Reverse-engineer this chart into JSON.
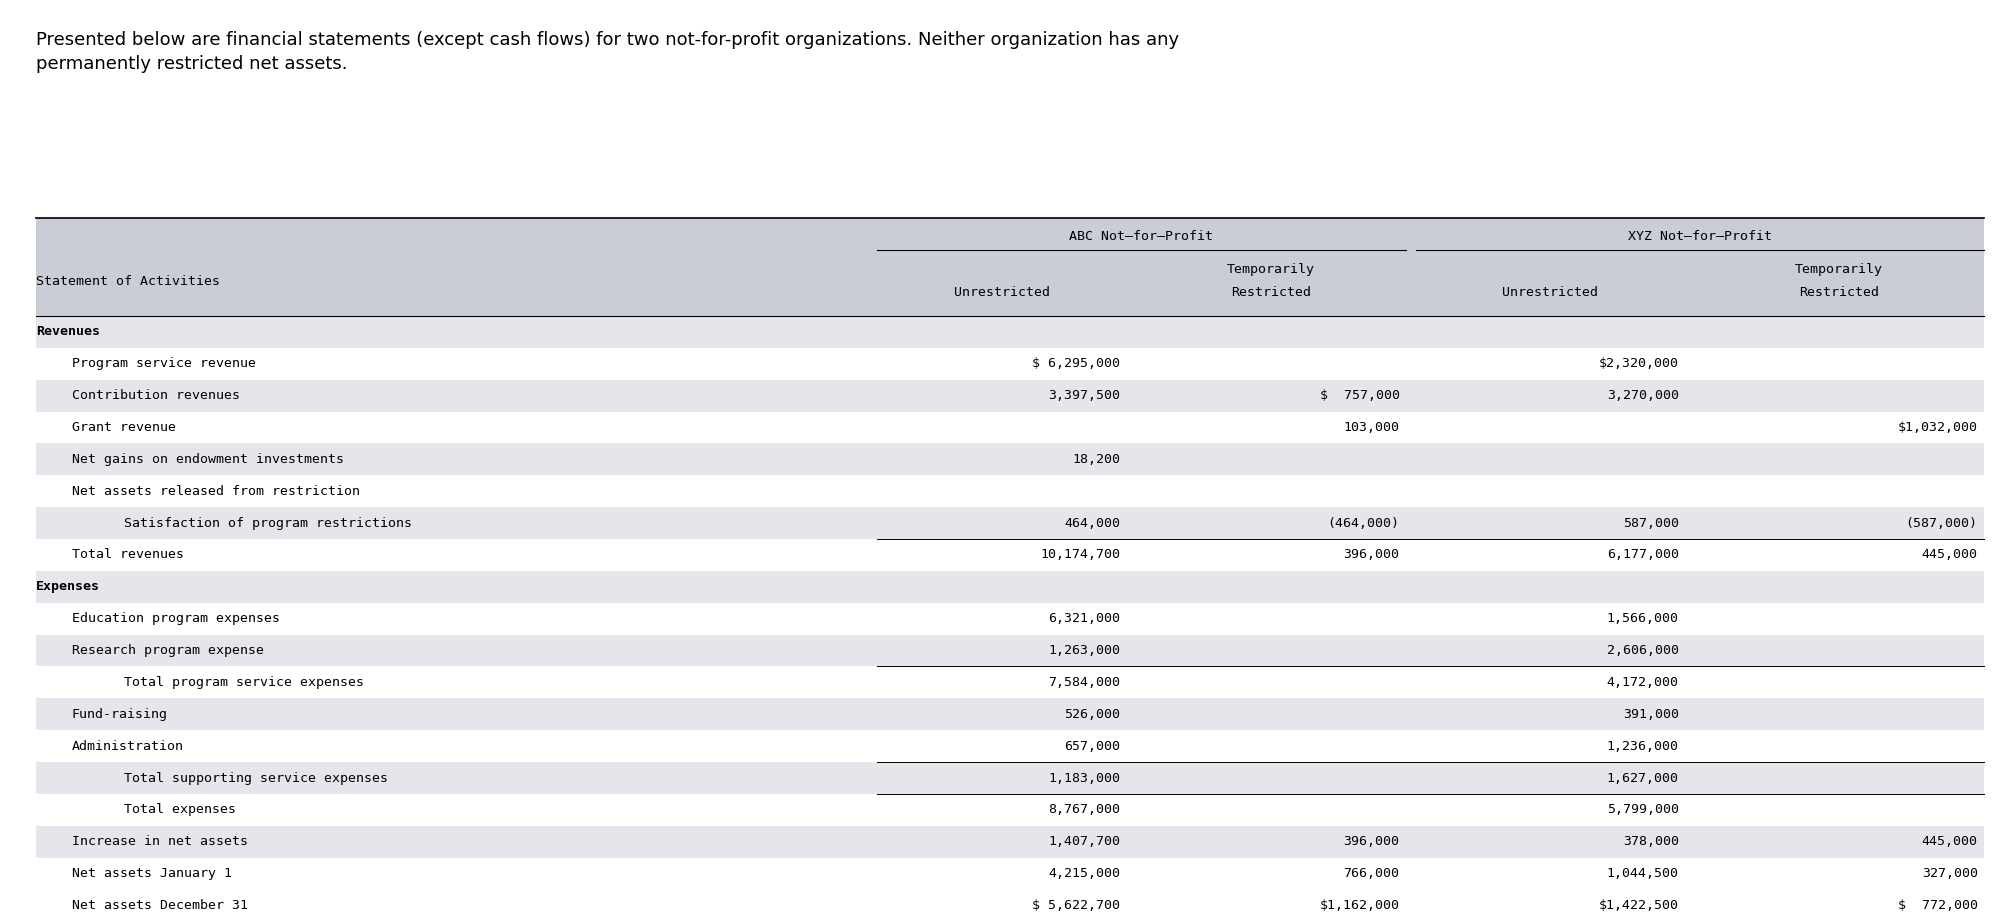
{
  "title_text": "Presented below are financial statements (except cash flows) for two not-for-profit organizations. Neither organization has any\npermanently restricted net assets.",
  "background_color": "#ffffff",
  "header_bg": "#c8cdd6",
  "row_bg_even": "#e4e6eb",
  "row_bg_odd": "#ffffff",
  "mono_font": "DejaVu Sans Mono",
  "sans_font": "DejaVu Sans",
  "abc_label": "ABC Not–for–Profit",
  "xyz_label": "XYZ Not–for–Profit",
  "col_headers": [
    "Statement of Activities",
    "Unrestricted",
    "Temporarily\nRestricted",
    "Unrestricted",
    "Temporarily\nRestricted"
  ],
  "rows": [
    {
      "label": "Revenues",
      "bold": true,
      "indent": 0,
      "values": [
        "",
        "",
        "",
        ""
      ],
      "top_border": false,
      "double_border": false
    },
    {
      "label": "Program service revenue",
      "bold": false,
      "indent": 1,
      "values": [
        "$ 6,295,000",
        "",
        "$2,320,000",
        ""
      ],
      "top_border": false,
      "double_border": false
    },
    {
      "label": "Contribution revenues",
      "bold": false,
      "indent": 1,
      "values": [
        "3,397,500",
        "$  757,000",
        "3,270,000",
        ""
      ],
      "top_border": false,
      "double_border": false
    },
    {
      "label": "Grant revenue",
      "bold": false,
      "indent": 1,
      "values": [
        "",
        "103,000",
        "",
        "$1,032,000"
      ],
      "top_border": false,
      "double_border": false
    },
    {
      "label": "Net gains on endowment investments",
      "bold": false,
      "indent": 1,
      "values": [
        "18,200",
        "",
        "",
        ""
      ],
      "top_border": false,
      "double_border": false
    },
    {
      "label": "Net assets released from restriction",
      "bold": false,
      "indent": 1,
      "values": [
        "",
        "",
        "",
        ""
      ],
      "top_border": false,
      "double_border": false
    },
    {
      "label": "  Satisfaction of program restrictions",
      "bold": false,
      "indent": 2,
      "values": [
        "464,000",
        "(464,000)",
        "587,000",
        "(587,000)"
      ],
      "top_border": false,
      "double_border": false
    },
    {
      "label": "Total revenues",
      "bold": false,
      "indent": 1,
      "values": [
        "10,174,700",
        "396,000",
        "6,177,000",
        "445,000"
      ],
      "top_border": true,
      "double_border": false
    },
    {
      "label": "Expenses",
      "bold": true,
      "indent": 0,
      "values": [
        "",
        "",
        "",
        ""
      ],
      "top_border": false,
      "double_border": false
    },
    {
      "label": "Education program expenses",
      "bold": false,
      "indent": 1,
      "values": [
        "6,321,000",
        "",
        "1,566,000",
        ""
      ],
      "top_border": false,
      "double_border": false
    },
    {
      "label": "Research program expense",
      "bold": false,
      "indent": 1,
      "values": [
        "1,263,000",
        "",
        "2,606,000",
        ""
      ],
      "top_border": false,
      "double_border": false
    },
    {
      "label": "  Total program service expenses",
      "bold": false,
      "indent": 2,
      "values": [
        "7,584,000",
        "",
        "4,172,000",
        ""
      ],
      "top_border": true,
      "double_border": false
    },
    {
      "label": "Fund-raising",
      "bold": false,
      "indent": 1,
      "values": [
        "526,000",
        "",
        "391,000",
        ""
      ],
      "top_border": false,
      "double_border": false
    },
    {
      "label": "Administration",
      "bold": false,
      "indent": 1,
      "values": [
        "657,000",
        "",
        "1,236,000",
        ""
      ],
      "top_border": false,
      "double_border": false
    },
    {
      "label": "  Total supporting service expenses",
      "bold": false,
      "indent": 2,
      "values": [
        "1,183,000",
        "",
        "1,627,000",
        ""
      ],
      "top_border": true,
      "double_border": false
    },
    {
      "label": "  Total expenses",
      "bold": false,
      "indent": 2,
      "values": [
        "8,767,000",
        "",
        "5,799,000",
        ""
      ],
      "top_border": true,
      "double_border": false
    },
    {
      "label": "Increase in net assets",
      "bold": false,
      "indent": 1,
      "values": [
        "1,407,700",
        "396,000",
        "378,000",
        "445,000"
      ],
      "top_border": false,
      "double_border": false
    },
    {
      "label": "Net assets January 1",
      "bold": false,
      "indent": 1,
      "values": [
        "4,215,000",
        "766,000",
        "1,044,500",
        "327,000"
      ],
      "top_border": false,
      "double_border": false
    },
    {
      "label": "Net assets December 31",
      "bold": false,
      "indent": 1,
      "values": [
        "$ 5,622,700",
        "$1,162,000",
        "$1,422,500",
        "$  772,000"
      ],
      "top_border": true,
      "double_border": true
    }
  ]
}
